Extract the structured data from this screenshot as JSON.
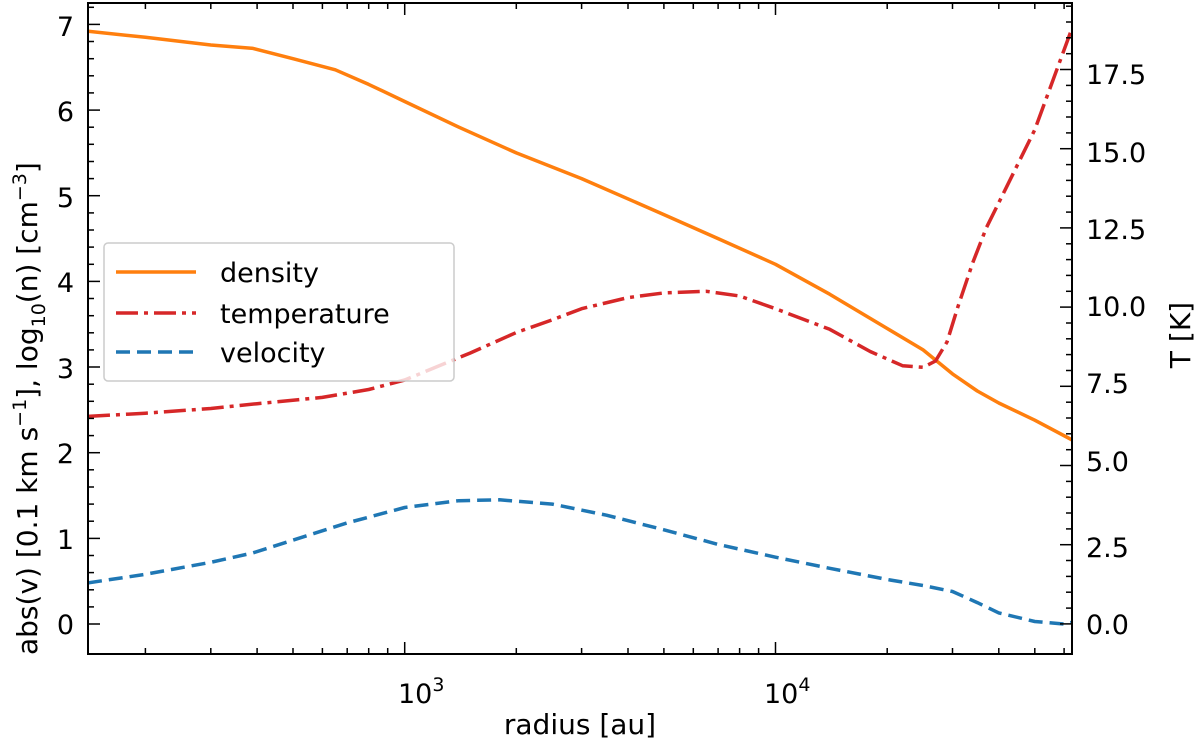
{
  "chart_data": {
    "type": "line",
    "xscale": "log",
    "xlim": [
      140,
      63000
    ],
    "ylim": [
      -0.35,
      7.25
    ],
    "ylim_right": [
      -0.95,
      19.6
    ],
    "xlabel": "radius    [au]",
    "ylabel_left": "abs(v)  [0.1 km s⁻¹],  log₁₀(n)  [cm⁻³]",
    "ylabel_left_parts": {
      "p1": "abs(v)  [0.1 km s",
      "p1_sup": "−1",
      "p2": "],  log",
      "p2_sub": "10",
      "p3": "(n)  [cm",
      "p3_sup": "−3",
      "p4": "]"
    },
    "ylabel_right": "T  [K]",
    "x_ticks": [
      {
        "value": 1000,
        "base": "10",
        "exp": "3"
      },
      {
        "value": 10000,
        "base": "10",
        "exp": "4"
      }
    ],
    "y_ticks_left": [
      "0",
      "1",
      "2",
      "3",
      "4",
      "5",
      "6",
      "7"
    ],
    "y_ticks_right": [
      "0.0",
      "2.5",
      "5.0",
      "7.5",
      "10.0",
      "12.5",
      "15.0",
      "17.5"
    ],
    "legend": {
      "position": "center-left",
      "entries": [
        {
          "label": "density",
          "style": "solid",
          "color": "#ff7f0e"
        },
        {
          "label": "temperature",
          "style": "dashdot",
          "color": "#d62728"
        },
        {
          "label": "velocity",
          "style": "dashed",
          "color": "#1f77b4"
        }
      ]
    },
    "series": [
      {
        "name": "density",
        "axis": "left",
        "color": "#ff7f0e",
        "style": "solid",
        "x": [
          140,
          200,
          300,
          390,
          500,
          650,
          800,
          1000,
          1400,
          2000,
          3000,
          5000,
          7000,
          10000,
          14000,
          20000,
          25000,
          30000,
          35000,
          40000,
          50000,
          63000
        ],
        "y": [
          6.92,
          6.85,
          6.76,
          6.72,
          6.6,
          6.47,
          6.3,
          6.1,
          5.8,
          5.5,
          5.2,
          4.78,
          4.5,
          4.2,
          3.85,
          3.45,
          3.2,
          2.92,
          2.72,
          2.58,
          2.38,
          2.15
        ]
      },
      {
        "name": "temperature",
        "axis": "right",
        "color": "#d62728",
        "style": "dashdot",
        "x": [
          140,
          200,
          300,
          400,
          600,
          800,
          1000,
          1500,
          2000,
          2500,
          3000,
          4000,
          5000,
          6500,
          8000,
          10000,
          14000,
          18000,
          22000,
          25000,
          27000,
          29000,
          31000,
          34000,
          37000,
          42000,
          50000,
          63000
        ],
        "y": [
          6.55,
          6.65,
          6.8,
          6.95,
          7.15,
          7.4,
          7.7,
          8.55,
          9.2,
          9.6,
          9.95,
          10.3,
          10.45,
          10.5,
          10.35,
          9.95,
          9.3,
          8.6,
          8.15,
          8.1,
          8.3,
          8.9,
          10.0,
          11.4,
          12.5,
          13.8,
          15.6,
          18.8
        ]
      },
      {
        "name": "velocity",
        "axis": "left",
        "color": "#1f77b4",
        "style": "dashed",
        "x": [
          140,
          200,
          300,
          390,
          500,
          700,
          1000,
          1400,
          1800,
          2500,
          3500,
          5000,
          7000,
          10000,
          14000,
          20000,
          25000,
          30000,
          35000,
          40000,
          50000,
          60000,
          63000
        ],
        "y": [
          0.48,
          0.58,
          0.72,
          0.83,
          0.98,
          1.18,
          1.36,
          1.44,
          1.45,
          1.4,
          1.27,
          1.1,
          0.93,
          0.78,
          0.65,
          0.52,
          0.45,
          0.38,
          0.25,
          0.13,
          0.03,
          0.0,
          0.02
        ]
      }
    ]
  }
}
